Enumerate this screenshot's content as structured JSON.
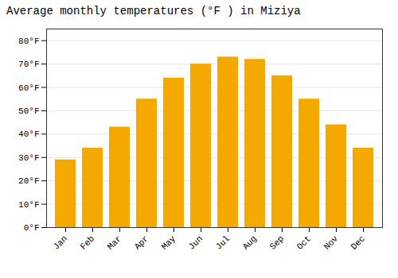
{
  "chart_data": {
    "type": "bar",
    "title": "Average monthly temperatures (°F ) in Miziya",
    "categories": [
      "Jan",
      "Feb",
      "Mar",
      "Apr",
      "May",
      "Jun",
      "Jul",
      "Aug",
      "Sep",
      "Oct",
      "Nov",
      "Dec"
    ],
    "values": [
      29,
      34,
      43,
      55,
      64,
      70,
      73,
      72,
      65,
      55,
      44,
      34
    ],
    "color": "#F5A800",
    "ylim": [
      0,
      85
    ],
    "yticks": [
      {
        "value": 0,
        "label": "0°F"
      },
      {
        "value": 10,
        "label": "10°F"
      },
      {
        "value": 20,
        "label": "20°F"
      },
      {
        "value": 30,
        "label": "30°F"
      },
      {
        "value": 40,
        "label": "40°F"
      },
      {
        "value": 50,
        "label": "50°F"
      },
      {
        "value": 60,
        "label": "60°F"
      },
      {
        "value": 70,
        "label": "70°F"
      },
      {
        "value": 80,
        "label": "80°F"
      }
    ],
    "grid": true
  }
}
